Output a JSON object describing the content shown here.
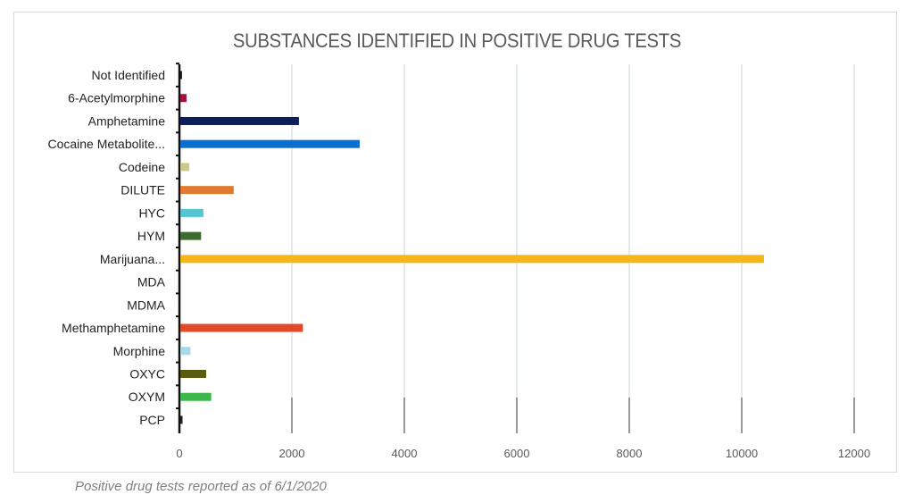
{
  "chart_data": {
    "type": "bar",
    "orientation": "horizontal",
    "title": "SUBSTANCES IDENTIFIED IN POSITIVE DRUG TESTS",
    "categories": [
      "Not Identified",
      "6-Acetylmorphine",
      "Amphetamine",
      "Cocaine Metabolite...",
      "Codeine",
      "DILUTE",
      "HYC",
      "HYM",
      "Marijuana...",
      "MDA",
      "MDMA",
      "Methamphetamine",
      "Morphine",
      "OXYC",
      "OXYM",
      "PCP"
    ],
    "values": [
      30,
      110,
      2110,
      3190,
      160,
      950,
      410,
      370,
      10380,
      0,
      0,
      2180,
      180,
      460,
      550,
      40
    ],
    "colors": [
      "#1a1a1a",
      "#a0123a",
      "#0c1f5c",
      "#0a6fcf",
      "#c9c98a",
      "#e07a30",
      "#56c5d0",
      "#3b6e2e",
      "#f5b617",
      "#999999",
      "#999999",
      "#e04a2a",
      "#a8d8ea",
      "#5a5a10",
      "#3cb84a",
      "#222222"
    ],
    "xlim": [
      0,
      12000
    ],
    "xticks": [
      "0",
      "2000",
      "4000",
      "6000",
      "8000",
      "10000",
      "12000"
    ],
    "grid": true,
    "legend": "none"
  },
  "caption": "Positive drug tests reported as of 6/1/2020"
}
